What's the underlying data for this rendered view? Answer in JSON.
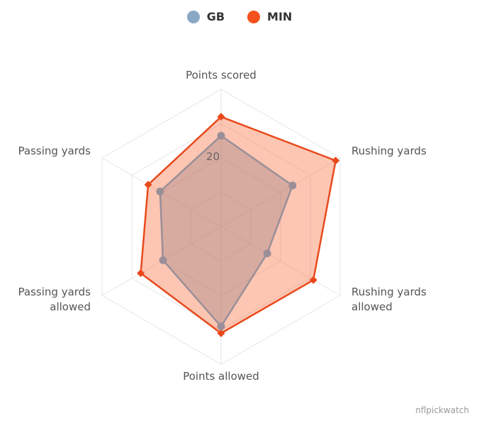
{
  "chart_data": {
    "type": "radar",
    "axes": [
      "Points scored",
      "Rushing yards",
      "Rushing yards allowed",
      "Points allowed",
      "Passing yards allowed",
      "Passing yards"
    ],
    "rmax": 40,
    "gridlines": [
      10,
      20,
      30,
      40
    ],
    "tick_labels": [
      {
        "value": 20,
        "text": "20"
      }
    ],
    "series": [
      {
        "name": "GB",
        "color": "#8ba7c6",
        "line_color": "#9a8f98",
        "marker": "circle",
        "values": [
          26.5,
          24,
          15.5,
          29,
          19.5,
          20.5
        ]
      },
      {
        "name": "MIN",
        "color": "#f4511e",
        "line_color": "#e8491c",
        "marker": "diamond",
        "values": [
          32,
          38.5,
          31,
          31,
          27,
          24.5
        ]
      }
    ],
    "legend_position": "top-center"
  },
  "credit": "nflpickwatch"
}
